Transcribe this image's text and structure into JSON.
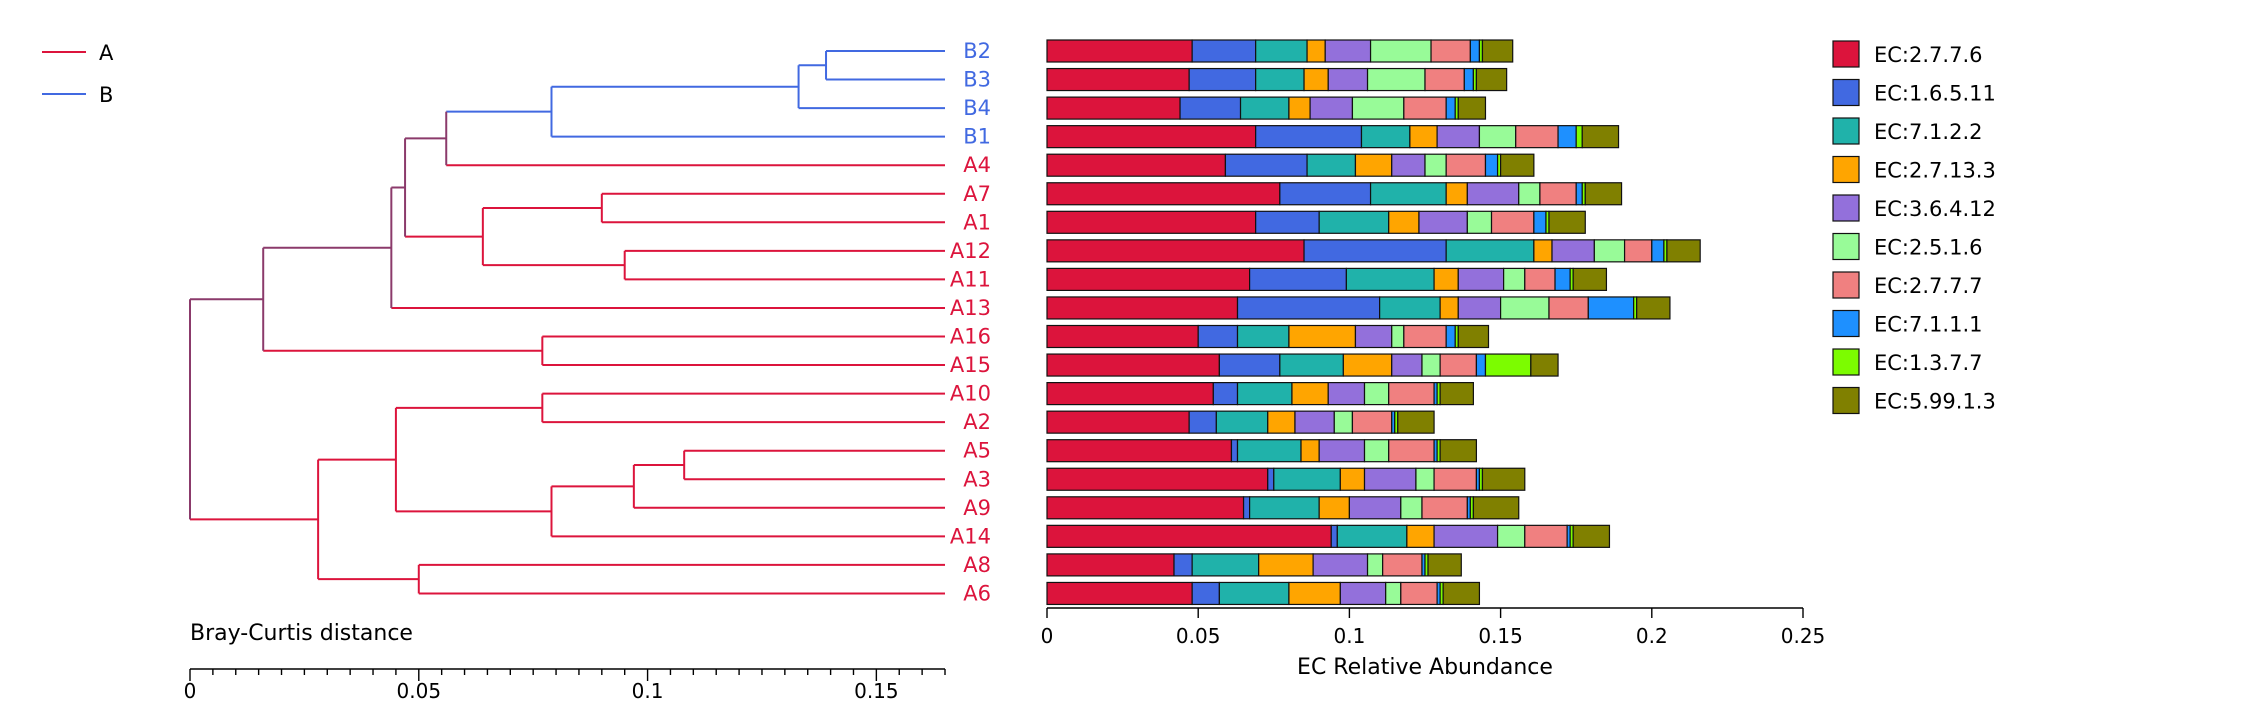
{
  "chart_data": [
    {
      "type": "dendrogram",
      "xlabel": "Bray-Curtis distance",
      "xticks": [
        0,
        0.05,
        0.1,
        0.15
      ],
      "xlim": [
        0,
        0.165
      ],
      "group_legend": [
        {
          "label": "A",
          "color": "#dc143c"
        },
        {
          "label": "B",
          "color": "#4169e1"
        }
      ],
      "merged_color": "#8b3a6b",
      "leaves": [
        {
          "label": "B2",
          "group": "B"
        },
        {
          "label": "B3",
          "group": "B"
        },
        {
          "label": "B4",
          "group": "B"
        },
        {
          "label": "B1",
          "group": "B"
        },
        {
          "label": "A4",
          "group": "A"
        },
        {
          "label": "A7",
          "group": "A"
        },
        {
          "label": "A1",
          "group": "A"
        },
        {
          "label": "A12",
          "group": "A"
        },
        {
          "label": "A11",
          "group": "A"
        },
        {
          "label": "A13",
          "group": "A"
        },
        {
          "label": "A16",
          "group": "A"
        },
        {
          "label": "A15",
          "group": "A"
        },
        {
          "label": "A10",
          "group": "A"
        },
        {
          "label": "A2",
          "group": "A"
        },
        {
          "label": "A5",
          "group": "A"
        },
        {
          "label": "A3",
          "group": "A"
        },
        {
          "label": "A9",
          "group": "A"
        },
        {
          "label": "A14",
          "group": "A"
        },
        {
          "label": "A8",
          "group": "A"
        },
        {
          "label": "A6",
          "group": "A"
        }
      ],
      "merges": [
        {
          "a": "B2",
          "b": "B3",
          "h": 0.139
        },
        {
          "a": 0,
          "b": "B4",
          "h": 0.133
        },
        {
          "a": 1,
          "b": "B1",
          "h": 0.079
        },
        {
          "a": 2,
          "b": "A4",
          "h": 0.056
        },
        {
          "a": "A7",
          "b": "A1",
          "h": 0.09
        },
        {
          "a": "A12",
          "b": "A11",
          "h": 0.095
        },
        {
          "a": 4,
          "b": 5,
          "h": 0.064
        },
        {
          "a": 3,
          "b": 6,
          "h": 0.047
        },
        {
          "a": 7,
          "b": "A13",
          "h": 0.044
        },
        {
          "a": "A16",
          "b": "A15",
          "h": 0.077
        },
        {
          "a": 8,
          "b": 9,
          "h": 0.016
        },
        {
          "a": "A10",
          "b": "A2",
          "h": 0.077
        },
        {
          "a": "A5",
          "b": "A3",
          "h": 0.108
        },
        {
          "a": 12,
          "b": "A9",
          "h": 0.097
        },
        {
          "a": 13,
          "b": "A14",
          "h": 0.079
        },
        {
          "a": 11,
          "b": 14,
          "h": 0.045
        },
        {
          "a": "A8",
          "b": "A6",
          "h": 0.05
        },
        {
          "a": 15,
          "b": 16,
          "h": 0.028
        },
        {
          "a": 10,
          "b": 17,
          "h": 0.0
        }
      ]
    },
    {
      "type": "bar",
      "orientation": "horizontal",
      "stacked": true,
      "xlabel": "EC Relative Abundance",
      "xticks": [
        0,
        0.05,
        0.1,
        0.15,
        0.2,
        0.25
      ],
      "xlim": [
        0,
        0.25
      ],
      "categories": [
        "B2",
        "B3",
        "B4",
        "B1",
        "A4",
        "A7",
        "A1",
        "A12",
        "A11",
        "A13",
        "A16",
        "A15",
        "A10",
        "A2",
        "A5",
        "A3",
        "A9",
        "A14",
        "A8",
        "A6"
      ],
      "series": [
        {
          "name": "EC:2.7.7.6",
          "color": "#dc143c",
          "values": [
            0.048,
            0.047,
            0.044,
            0.069,
            0.059,
            0.077,
            0.069,
            0.085,
            0.067,
            0.063,
            0.05,
            0.057,
            0.055,
            0.047,
            0.061,
            0.073,
            0.065,
            0.094,
            0.042,
            0.048
          ]
        },
        {
          "name": "EC:1.6.5.11",
          "color": "#4169e1",
          "values": [
            0.021,
            0.022,
            0.02,
            0.035,
            0.027,
            0.03,
            0.021,
            0.047,
            0.032,
            0.047,
            0.013,
            0.02,
            0.008,
            0.009,
            0.002,
            0.002,
            0.002,
            0.002,
            0.006,
            0.009
          ]
        },
        {
          "name": "EC:7.1.2.2",
          "color": "#20b2aa",
          "values": [
            0.017,
            0.016,
            0.016,
            0.016,
            0.016,
            0.025,
            0.023,
            0.029,
            0.029,
            0.02,
            0.017,
            0.021,
            0.018,
            0.017,
            0.021,
            0.022,
            0.023,
            0.023,
            0.022,
            0.023
          ]
        },
        {
          "name": "EC:2.7.13.3",
          "color": "#ffa500",
          "values": [
            0.006,
            0.008,
            0.007,
            0.009,
            0.012,
            0.007,
            0.01,
            0.006,
            0.008,
            0.006,
            0.022,
            0.016,
            0.012,
            0.009,
            0.006,
            0.008,
            0.01,
            0.009,
            0.018,
            0.017
          ]
        },
        {
          "name": "EC:3.6.4.12",
          "color": "#9370db",
          "values": [
            0.015,
            0.013,
            0.014,
            0.014,
            0.011,
            0.017,
            0.016,
            0.014,
            0.015,
            0.014,
            0.012,
            0.01,
            0.012,
            0.013,
            0.015,
            0.017,
            0.017,
            0.021,
            0.018,
            0.015
          ]
        },
        {
          "name": "EC:2.5.1.6",
          "color": "#98fb98",
          "values": [
            0.02,
            0.019,
            0.017,
            0.012,
            0.007,
            0.007,
            0.008,
            0.01,
            0.007,
            0.016,
            0.004,
            0.006,
            0.008,
            0.006,
            0.008,
            0.006,
            0.007,
            0.009,
            0.005,
            0.005
          ]
        },
        {
          "name": "EC:2.7.7.7",
          "color": "#f08080",
          "values": [
            0.013,
            0.013,
            0.014,
            0.014,
            0.013,
            0.012,
            0.014,
            0.009,
            0.01,
            0.013,
            0.014,
            0.012,
            0.015,
            0.013,
            0.015,
            0.014,
            0.015,
            0.014,
            0.013,
            0.012
          ]
        },
        {
          "name": "EC:7.1.1.1",
          "color": "#1e90ff",
          "values": [
            0.003,
            0.003,
            0.003,
            0.006,
            0.004,
            0.002,
            0.004,
            0.004,
            0.005,
            0.015,
            0.003,
            0.003,
            0.001,
            0.001,
            0.001,
            0.001,
            0.001,
            0.001,
            0.001,
            0.001
          ]
        },
        {
          "name": "EC:1.3.7.7",
          "color": "#7cfc00",
          "values": [
            0.001,
            0.001,
            0.001,
            0.002,
            0.001,
            0.001,
            0.001,
            0.001,
            0.001,
            0.001,
            0.001,
            0.015,
            0.001,
            0.001,
            0.001,
            0.001,
            0.001,
            0.001,
            0.001,
            0.001
          ]
        },
        {
          "name": "EC:5.99.1.3",
          "color": "#808000",
          "values": [
            0.01,
            0.01,
            0.009,
            0.012,
            0.011,
            0.012,
            0.012,
            0.011,
            0.011,
            0.011,
            0.01,
            0.009,
            0.011,
            0.012,
            0.012,
            0.014,
            0.015,
            0.012,
            0.011,
            0.012
          ]
        }
      ],
      "legend_position": "right"
    }
  ]
}
